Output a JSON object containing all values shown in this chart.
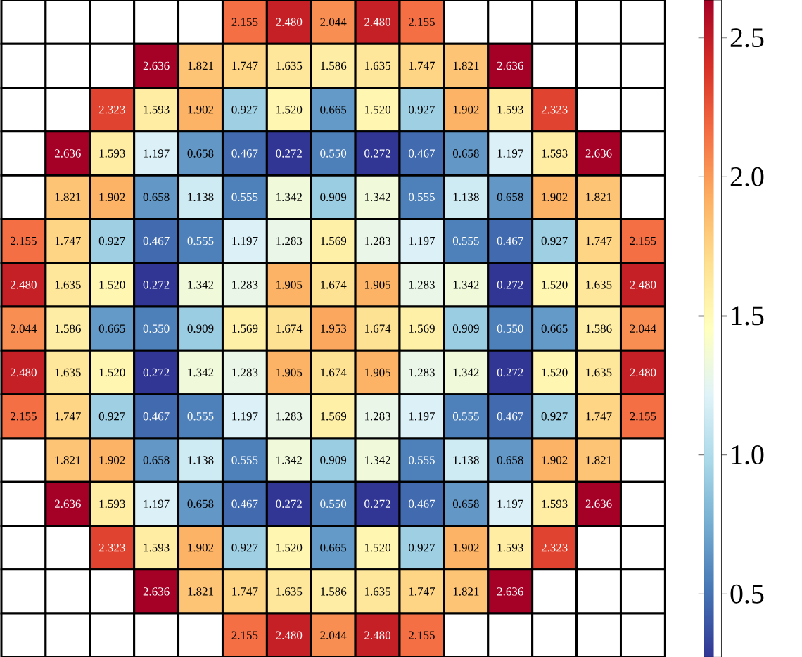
{
  "chart_data": {
    "type": "heatmap",
    "categories": [
      null,
      null,
      null,
      null,
      null,
      null,
      null,
      null,
      null,
      null,
      null,
      null,
      null,
      null,
      null
    ],
    "y_categories": [
      null,
      null,
      null,
      null,
      null,
      null,
      null,
      null,
      null,
      null,
      null,
      null,
      null,
      null,
      null
    ],
    "cells": [
      [
        null,
        null,
        null,
        null,
        null,
        2.155,
        2.48,
        2.044,
        2.48,
        2.155,
        null,
        null,
        null,
        null,
        null
      ],
      [
        null,
        null,
        null,
        2.636,
        1.821,
        1.747,
        1.635,
        1.586,
        1.635,
        1.747,
        1.821,
        2.636,
        null,
        null,
        null
      ],
      [
        null,
        null,
        2.323,
        1.593,
        1.902,
        0.927,
        1.52,
        0.665,
        1.52,
        0.927,
        1.902,
        1.593,
        2.323,
        null,
        null
      ],
      [
        null,
        2.636,
        1.593,
        1.197,
        0.658,
        0.467,
        0.272,
        0.55,
        0.272,
        0.467,
        0.658,
        1.197,
        1.593,
        2.636,
        null
      ],
      [
        null,
        1.821,
        1.902,
        0.658,
        1.138,
        0.555,
        1.342,
        0.909,
        1.342,
        0.555,
        1.138,
        0.658,
        1.902,
        1.821,
        null
      ],
      [
        2.155,
        1.747,
        0.927,
        0.467,
        0.555,
        1.197,
        1.283,
        1.569,
        1.283,
        1.197,
        0.555,
        0.467,
        0.927,
        1.747,
        2.155
      ],
      [
        2.48,
        1.635,
        1.52,
        0.272,
        1.342,
        1.283,
        1.905,
        1.674,
        1.905,
        1.283,
        1.342,
        0.272,
        1.52,
        1.635,
        2.48
      ],
      [
        2.044,
        1.586,
        0.665,
        0.55,
        0.909,
        1.569,
        1.674,
        1.953,
        1.674,
        1.569,
        0.909,
        0.55,
        0.665,
        1.586,
        2.044
      ],
      [
        2.48,
        1.635,
        1.52,
        0.272,
        1.342,
        1.283,
        1.905,
        1.674,
        1.905,
        1.283,
        1.342,
        0.272,
        1.52,
        1.635,
        2.48
      ],
      [
        2.155,
        1.747,
        0.927,
        0.467,
        0.555,
        1.197,
        1.283,
        1.569,
        1.283,
        1.197,
        0.555,
        0.467,
        0.927,
        1.747,
        2.155
      ],
      [
        null,
        1.821,
        1.902,
        0.658,
        1.138,
        0.555,
        1.342,
        0.909,
        1.342,
        0.555,
        1.138,
        0.658,
        1.902,
        1.821,
        null
      ],
      [
        null,
        2.636,
        1.593,
        1.197,
        0.658,
        0.467,
        0.272,
        0.55,
        0.272,
        0.467,
        0.658,
        1.197,
        1.593,
        2.636,
        null
      ],
      [
        null,
        null,
        2.323,
        1.593,
        1.902,
        0.927,
        1.52,
        0.665,
        1.52,
        0.927,
        1.902,
        1.593,
        2.323,
        null,
        null
      ],
      [
        null,
        null,
        null,
        2.636,
        1.821,
        1.747,
        1.635,
        1.586,
        1.635,
        1.747,
        1.821,
        2.636,
        null,
        null,
        null
      ],
      [
        null,
        null,
        null,
        null,
        null,
        2.155,
        2.48,
        2.044,
        2.48,
        2.155,
        null,
        null,
        null,
        null,
        null
      ]
    ],
    "cell_labels": [
      [
        null,
        null,
        null,
        null,
        null,
        "2.155",
        "2.480",
        "2.044",
        "2.480",
        "2.155",
        null,
        null,
        null,
        null,
        null
      ],
      [
        null,
        null,
        null,
        "2.636",
        "1.821",
        "1.747",
        "1.635",
        "1.586",
        "1.635",
        "1.747",
        "1.821",
        "2.636",
        null,
        null,
        null
      ],
      [
        null,
        null,
        "2.323",
        "1.593",
        "1.902",
        "0.927",
        "1.520",
        "0.665",
        "1.520",
        "0.927",
        "1.902",
        "1.593",
        "2.323",
        null,
        null
      ],
      [
        null,
        "2.636",
        "1.593",
        "1.197",
        "0.658",
        "0.467",
        "0.272",
        "0.550",
        "0.272",
        "0.467",
        "0.658",
        "1.197",
        "1.593",
        "2.636",
        null
      ],
      [
        null,
        "1.821",
        "1.902",
        "0.658",
        "1.138",
        "0.555",
        "1.342",
        "0.909",
        "1.342",
        "0.555",
        "1.138",
        "0.658",
        "1.902",
        "1.821",
        null
      ],
      [
        "2.155",
        "1.747",
        "0.927",
        "0.467",
        "0.555",
        "1.197",
        "1.283",
        "1.569",
        "1.283",
        "1.197",
        "0.555",
        "0.467",
        "0.927",
        "1.747",
        "2.155"
      ],
      [
        "2.480",
        "1.635",
        "1.520",
        "0.272",
        "1.342",
        "1.283",
        "1.905",
        "1.674",
        "1.905",
        "1.283",
        "1.342",
        "0.272",
        "1.520",
        "1.635",
        "2.480"
      ],
      [
        "2.044",
        "1.586",
        "0.665",
        "0.550",
        "0.909",
        "1.569",
        "1.674",
        "1.953",
        "1.674",
        "1.569",
        "0.909",
        "0.550",
        "0.665",
        "1.586",
        "2.044"
      ],
      [
        "2.480",
        "1.635",
        "1.520",
        "0.272",
        "1.342",
        "1.283",
        "1.905",
        "1.674",
        "1.905",
        "1.283",
        "1.342",
        "0.272",
        "1.520",
        "1.635",
        "2.480"
      ],
      [
        "2.155",
        "1.747",
        "0.927",
        "0.467",
        "0.555",
        "1.197",
        "1.283",
        "1.569",
        "1.283",
        "1.197",
        "0.555",
        "0.467",
        "0.927",
        "1.747",
        "2.155"
      ],
      [
        null,
        "1.821",
        "1.902",
        "0.658",
        "1.138",
        "0.555",
        "1.342",
        "0.909",
        "1.342",
        "0.555",
        "1.138",
        "0.658",
        "1.902",
        "1.821",
        null
      ],
      [
        null,
        "2.636",
        "1.593",
        "1.197",
        "0.658",
        "0.467",
        "0.272",
        "0.550",
        "0.272",
        "0.467",
        "0.658",
        "1.197",
        "1.593",
        "2.636",
        null
      ],
      [
        null,
        null,
        "2.323",
        "1.593",
        "1.902",
        "0.927",
        "1.520",
        "0.665",
        "1.520",
        "0.927",
        "1.902",
        "1.593",
        "2.323",
        null,
        null
      ],
      [
        null,
        null,
        null,
        "2.636",
        "1.821",
        "1.747",
        "1.635",
        "1.586",
        "1.635",
        "1.747",
        "1.821",
        "2.636",
        null,
        null,
        null
      ],
      [
        null,
        null,
        null,
        null,
        null,
        "2.155",
        "2.480",
        "2.044",
        "2.480",
        "2.155",
        null,
        null,
        null,
        null,
        null
      ]
    ],
    "clim": [
      0.272,
      2.636
    ],
    "cticks": [
      {
        "value": 0.5,
        "label": "0.5"
      },
      {
        "value": 1,
        "label": "1.0"
      },
      {
        "value": 1.5,
        "label": "1.5"
      },
      {
        "value": 2,
        "label": "2.0"
      },
      {
        "value": 2.5,
        "label": "2.5"
      }
    ]
  }
}
